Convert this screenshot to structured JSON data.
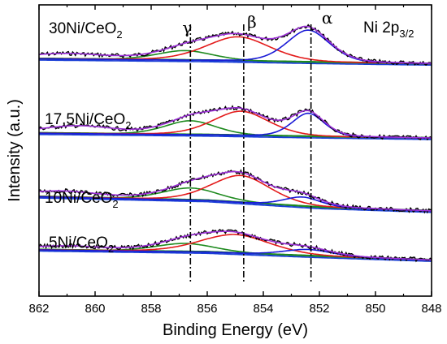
{
  "chart_data": {
    "type": "line",
    "title": "",
    "xlabel": "Binding Energy (eV)",
    "ylabel": "Intensity (a.u.)",
    "xlim": [
      862,
      848
    ],
    "x_reversed": true,
    "x_ticks": [
      862,
      860,
      858,
      856,
      854,
      852,
      850,
      848
    ],
    "y_ticks_shown": false,
    "grid": false,
    "region_label": {
      "main": "Ni 2p",
      "sub": "3/2"
    },
    "peak_markers": [
      {
        "label": "γ",
        "x": 856.6
      },
      {
        "label": "β",
        "x": 854.7
      },
      {
        "label": "α",
        "x": 852.3
      }
    ],
    "colors": {
      "raw": "#000000",
      "envelope": "#9b30d6",
      "alpha": "#1a1ad6",
      "beta": "#e31b1b",
      "gamma": "#1e8a1e",
      "background": "#1a3fd6"
    },
    "panels": [
      {
        "sample_main": "30Ni/CeO",
        "sample_sub": "2",
        "baseline": {
          "x": [
            862,
            856,
            852,
            848
          ],
          "y": [
            0.15,
            0.06,
            -0.04,
            -0.12
          ]
        },
        "components": [
          {
            "type": "gamma",
            "center": 856.8,
            "height": 0.52,
            "width": 1.05
          },
          {
            "type": "beta",
            "center": 854.9,
            "height": 1.3,
            "width": 1.2
          },
          {
            "type": "alpha",
            "center": 852.4,
            "height": 1.72,
            "width": 0.8
          },
          {
            "type": "extra",
            "center": 861.0,
            "height": 0.28,
            "width": 1.5
          }
        ],
        "raw_label": {
          "main": "Ni 2p",
          "sub": "3/2"
        }
      },
      {
        "sample_main": "17.5Ni/CeO",
        "sample_sub": "2",
        "baseline": {
          "x": [
            862,
            856,
            852,
            848
          ],
          "y": [
            0.12,
            0.03,
            -0.07,
            -0.15
          ]
        },
        "components": [
          {
            "type": "gamma",
            "center": 856.6,
            "height": 0.75,
            "width": 0.95
          },
          {
            "type": "beta",
            "center": 854.8,
            "height": 1.3,
            "width": 1.05
          },
          {
            "type": "alpha",
            "center": 852.4,
            "height": 1.25,
            "width": 0.6
          },
          {
            "type": "extra",
            "center": 860.6,
            "height": 0.4,
            "width": 1.4
          }
        ]
      },
      {
        "sample_main": "10Ni/CeO",
        "sample_sub": "2",
        "baseline": {
          "x": [
            862,
            856,
            852,
            848
          ],
          "y": [
            0.02,
            -0.18,
            -0.55,
            -0.75
          ]
        },
        "components": [
          {
            "type": "gamma",
            "center": 856.6,
            "height": 0.65,
            "width": 1.05
          },
          {
            "type": "beta",
            "center": 854.8,
            "height": 1.45,
            "width": 1.1
          },
          {
            "type": "alpha",
            "center": 852.6,
            "height": 0.5,
            "width": 0.7
          },
          {
            "type": "extra",
            "center": 861.2,
            "height": 0.32,
            "width": 1.4
          }
        ]
      },
      {
        "sample_main": "5Ni/CeO",
        "sample_sub": "2",
        "baseline": {
          "x": [
            862,
            856,
            852,
            848
          ],
          "y": [
            0.0,
            -0.12,
            -0.35,
            -0.55
          ]
        },
        "components": [
          {
            "type": "gamma",
            "center": 856.8,
            "height": 0.45,
            "width": 1.1
          },
          {
            "type": "beta",
            "center": 855.0,
            "height": 1.0,
            "width": 1.3
          },
          {
            "type": "alpha",
            "center": 852.4,
            "height": 0.35,
            "width": 0.9
          },
          {
            "type": "extra",
            "center": 861.0,
            "height": 0.22,
            "width": 1.4
          }
        ]
      }
    ]
  }
}
